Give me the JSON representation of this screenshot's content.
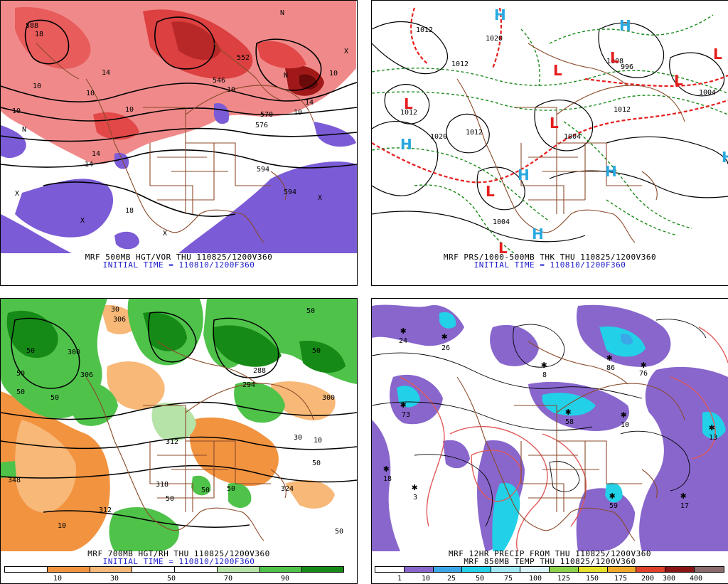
{
  "panels": {
    "p1": {
      "caption": "MRF 500MB HGT/VOR THU 110825/1200V360",
      "init": "INITIAL TIME = 110810/1200F360",
      "labels": [
        "588",
        "18",
        "10",
        "10",
        "14",
        "10",
        "14",
        "10",
        "546",
        "552",
        "570",
        "576",
        "10",
        "10",
        "14",
        "594",
        "594",
        "18",
        "14",
        "10",
        "X",
        "N",
        "X",
        "N",
        "N",
        "X",
        "X",
        "X"
      ]
    },
    "p2": {
      "caption": "MRF PRS/1000-500MB THK THU 110825/1200V360",
      "init": "INITIAL TIME = 110810/1200F360",
      "labels": [
        "1012",
        "1020",
        "1012",
        "1020",
        "1012",
        "1004",
        "996",
        "1004",
        "1012",
        "1004",
        "1012",
        "1008"
      ],
      "centers": [
        "H",
        "L",
        "H",
        "H",
        "L",
        "L",
        "L",
        "L",
        "L",
        "H",
        "H",
        "H",
        "L",
        "L",
        "H"
      ]
    },
    "p3": {
      "caption": "MRF 700MB HGT/RH THU 110825/1200V360",
      "init": "INITIAL TIME = 110810/1200F360",
      "labels": [
        "306",
        "50",
        "50",
        "50",
        "300",
        "30",
        "306",
        "288",
        "294",
        "300",
        "50",
        "50",
        "312",
        "318",
        "50",
        "312",
        "324",
        "10",
        "50",
        "50",
        "50",
        "50",
        "10",
        "30",
        "50",
        "348"
      ],
      "colorbar": {
        "ticks": [
          "10",
          "30",
          "50",
          "70",
          "90"
        ],
        "colors": [
          "#ffffff",
          "#f29340",
          "#f7b878",
          "#ffffff",
          "#ffffff",
          "#b6e3a8",
          "#4fc24a",
          "#168a16"
        ]
      }
    },
    "p4": {
      "caption": "MRF 12HR PRECIP FROM THU 110825/1200V360",
      "caption2": "MRF 850MB TEMP THU 110825/1200V360",
      "labels": [
        "24",
        "26",
        "73",
        "18",
        "3",
        "58",
        "10",
        "86",
        "76",
        "13",
        "59",
        "17",
        "8"
      ],
      "colorbar": {
        "ticks": [
          "1",
          "10",
          "25",
          "50",
          "75",
          "100",
          "125",
          "150",
          "175",
          "200",
          "300",
          "400"
        ],
        "colors": [
          "#ffffff",
          "#8866cc",
          "#3aa8e8",
          "#22d0e8",
          "#a0e8f4",
          "#d8f4f8",
          "#8cd24a",
          "#e6e02a",
          "#f0a828",
          "#e0402a",
          "#8a1414",
          "#8a6a6a"
        ]
      }
    }
  }
}
